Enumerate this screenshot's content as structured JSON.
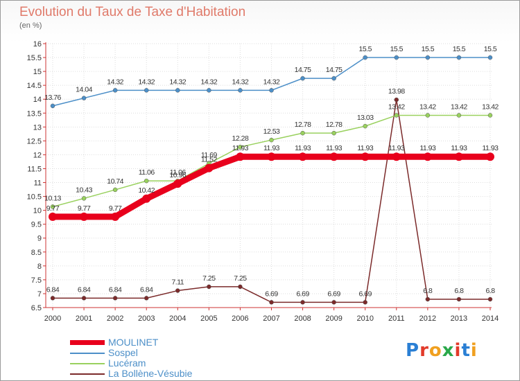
{
  "header": {
    "title": "Evolution du Taux de Taxe d'Habitation",
    "subtitle": "(en %)"
  },
  "logo": {
    "text": "Proxiti"
  },
  "colors": {
    "title": "#e07a6a",
    "axis": "#cc3333",
    "grid": "#dddddd"
  },
  "chart_data": {
    "type": "line",
    "title": "Evolution du Taux de Taxe d'Habitation",
    "ylabel": "(en %)",
    "xlabel": "",
    "x": [
      "2000",
      "2001",
      "2002",
      "2003",
      "2004",
      "2005",
      "2006",
      "2007",
      "2008",
      "2009",
      "2010",
      "2011",
      "2012",
      "2013",
      "2014"
    ],
    "ylim": [
      6.5,
      16
    ],
    "yticks": [
      "6.5",
      "7",
      "7.5",
      "8",
      "8.5",
      "9",
      "9.5",
      "10",
      "10.5",
      "11",
      "11.5",
      "12",
      "12.5",
      "13",
      "13.5",
      "14",
      "14.5",
      "15",
      "15.5",
      "16"
    ],
    "grid": true,
    "legend_position": "bottom-left",
    "series": [
      {
        "name": "MOULINET",
        "color": "#e8001c",
        "values": [
          9.77,
          9.77,
          9.77,
          10.42,
          10.96,
          11.52,
          11.93,
          11.93,
          11.93,
          11.93,
          11.93,
          11.93,
          11.93,
          11.93,
          11.93
        ],
        "labels": [
          "9.77",
          "9.77",
          "9.77",
          "10.42",
          "10.96",
          "11.52",
          "11.93",
          "11.93",
          "11.93",
          "11.93",
          "11.93",
          "11.93",
          "11.93",
          "11.93",
          "11.93"
        ]
      },
      {
        "name": "Sospel",
        "color": "#4c8fc8",
        "values": [
          13.76,
          14.04,
          14.32,
          14.32,
          14.32,
          14.32,
          14.32,
          14.32,
          14.75,
          14.75,
          15.5,
          15.5,
          15.5,
          15.5,
          15.5
        ],
        "labels": [
          "13.76",
          "14.04",
          "14.32",
          "14.32",
          "14.32",
          "14.32",
          "14.32",
          "14.32",
          "14.75",
          "14.75",
          "15.5",
          "15.5",
          "15.5",
          "15.5",
          "15.5"
        ]
      },
      {
        "name": "Lucéram",
        "color": "#99d15e",
        "values": [
          10.13,
          10.43,
          10.74,
          11.06,
          11.06,
          11.69,
          12.28,
          12.53,
          12.78,
          12.78,
          13.03,
          13.42,
          13.42,
          13.42,
          13.42
        ],
        "labels": [
          "10.13",
          "10.43",
          "10.74",
          "11.06",
          "11.06",
          "11.69",
          "12.28",
          "12.53",
          "12.78",
          "12.78",
          "13.03",
          "13.42",
          "13.42",
          "13.42",
          "13.42"
        ]
      },
      {
        "name": "La Bollène-Vésubie",
        "color": "#7b2a2a",
        "values": [
          6.84,
          6.84,
          6.84,
          6.84,
          7.11,
          7.25,
          7.25,
          6.69,
          6.69,
          6.69,
          6.69,
          13.98,
          6.8,
          6.8,
          6.8
        ],
        "labels": [
          "6.84",
          "6.84",
          "6.84",
          "6.84",
          "7.11",
          "7.25",
          "7.25",
          "6.69",
          "6.69",
          "6.69",
          "6.69",
          "13.98",
          "6.8",
          "6.8",
          "6.8"
        ]
      }
    ]
  }
}
